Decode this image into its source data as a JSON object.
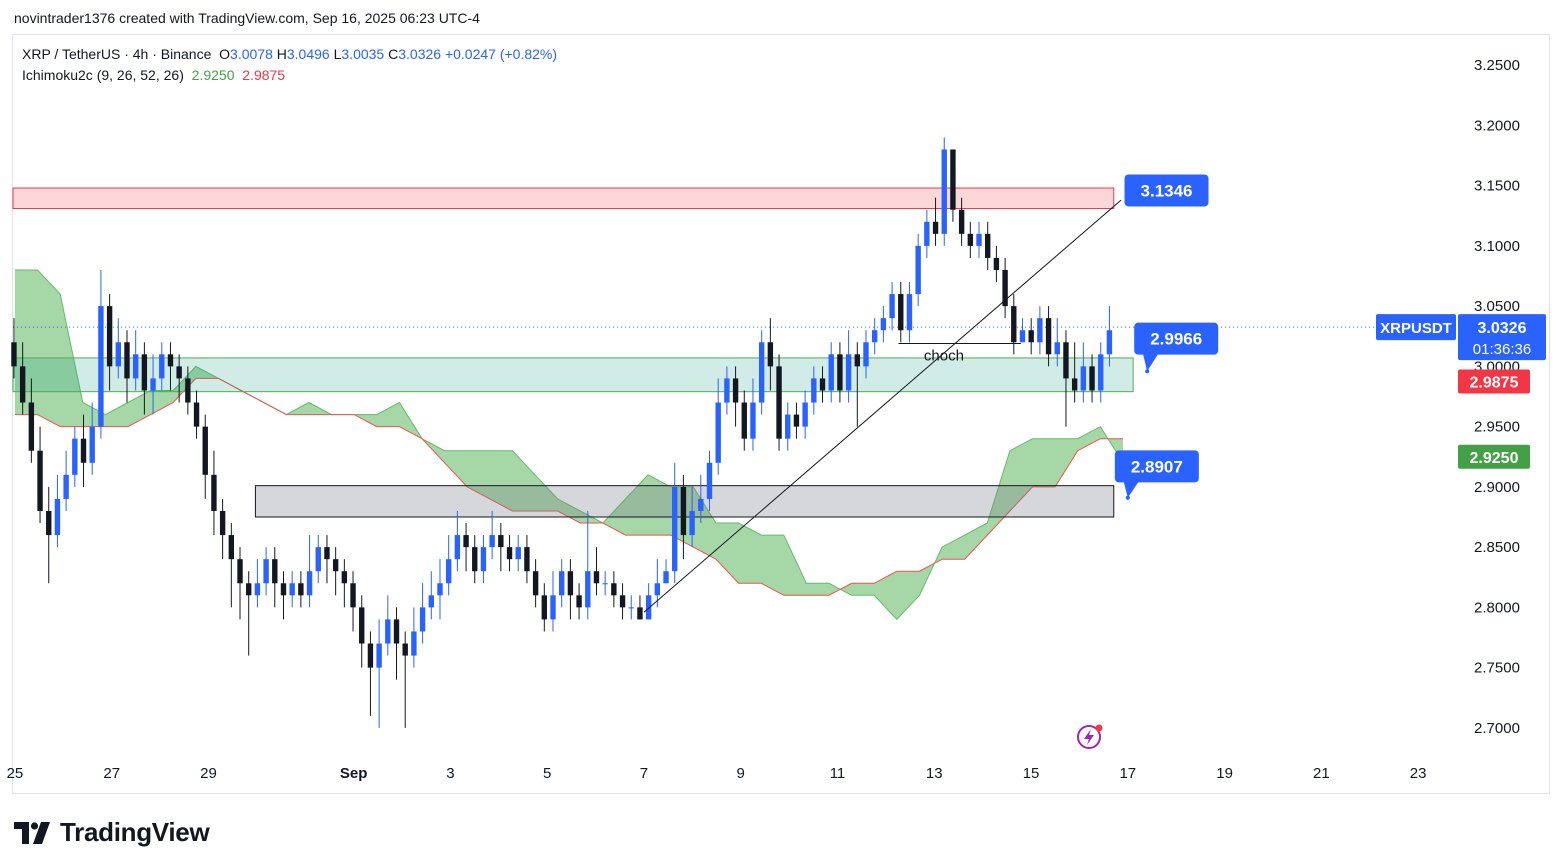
{
  "header": {
    "caption": "novintrader1376 created with TradingView.com, Sep 16, 2025 06:23 UTC-4"
  },
  "legend": {
    "symbol": "XRP / TetherUS · 4h · Binance",
    "open_label": "O",
    "open": "3.0078",
    "high_label": "H",
    "high": "3.0496",
    "low_label": "L",
    "low": "3.0035",
    "close_label": "C",
    "close": "3.0326",
    "change": "+0.0247 (+0.82%)",
    "indicator": "Ichimoku2c (9, 26, 52, 26)",
    "ind_val_1": "2.9250",
    "ind_val_2": "2.9875"
  },
  "brand": {
    "name": "TradingView"
  },
  "colors": {
    "up": "#2962ff",
    "down": "#131722",
    "cloud_green": "#4caf50",
    "cloud_edge_red": "#ef5350",
    "label_blue": "#2962ff",
    "label_red": "#f23645",
    "label_green": "#43a047"
  },
  "chart_data": {
    "type": "candlestick",
    "title": "XRP / TetherUS · 4h · Binance",
    "y_range": [
      2.675,
      3.275
    ],
    "y_ticks": [
      "3.2500",
      "3.2000",
      "3.1500",
      "3.1000",
      "3.0500",
      "3.0000",
      "2.9500",
      "2.9000",
      "2.8500",
      "2.8000",
      "2.7500",
      "2.7000"
    ],
    "x_range": [
      -0.04,
      29.7
    ],
    "x_ticks": [
      {
        "day": 0,
        "label": "25"
      },
      {
        "day": 2,
        "label": "27"
      },
      {
        "day": 4,
        "label": "29"
      },
      {
        "day": 7,
        "label": "Sep"
      },
      {
        "day": 9,
        "label": "3"
      },
      {
        "day": 11,
        "label": "5"
      },
      {
        "day": 13,
        "label": "7"
      },
      {
        "day": 15,
        "label": "9"
      },
      {
        "day": 17,
        "label": "11"
      },
      {
        "day": 19,
        "label": "13"
      },
      {
        "day": 21,
        "label": "15"
      },
      {
        "day": 23,
        "label": "17"
      },
      {
        "day": 25,
        "label": "19"
      },
      {
        "day": 27,
        "label": "21"
      },
      {
        "day": 29,
        "label": "23"
      }
    ],
    "candles": [
      [
        3.02,
        3.0,
        3.04,
        2.99
      ],
      [
        3.0,
        2.97,
        3.02,
        2.96
      ],
      [
        2.97,
        2.93,
        2.99,
        2.92
      ],
      [
        2.93,
        2.88,
        2.95,
        2.87
      ],
      [
        2.88,
        2.86,
        2.9,
        2.82
      ],
      [
        2.86,
        2.89,
        2.91,
        2.85
      ],
      [
        2.89,
        2.91,
        2.93,
        2.88
      ],
      [
        2.91,
        2.94,
        2.95,
        2.9
      ],
      [
        2.94,
        2.92,
        2.96,
        2.9
      ],
      [
        2.92,
        2.95,
        2.97,
        2.91
      ],
      [
        2.95,
        3.05,
        3.08,
        2.94
      ],
      [
        3.05,
        3.0,
        3.06,
        2.98
      ],
      [
        3.0,
        3.02,
        3.04,
        2.99
      ],
      [
        3.02,
        2.99,
        3.03,
        2.97
      ],
      [
        2.99,
        3.01,
        3.03,
        2.98
      ],
      [
        3.01,
        2.98,
        3.02,
        2.96
      ],
      [
        2.98,
        2.99,
        3.01,
        2.96
      ],
      [
        2.99,
        3.01,
        3.02,
        2.98
      ],
      [
        3.01,
        3.0,
        3.02,
        2.98
      ],
      [
        3.0,
        2.99,
        3.01,
        2.97
      ],
      [
        2.99,
        2.97,
        3.0,
        2.96
      ],
      [
        2.97,
        2.95,
        2.98,
        2.94
      ],
      [
        2.95,
        2.91,
        2.96,
        2.89
      ],
      [
        2.91,
        2.88,
        2.93,
        2.86
      ],
      [
        2.88,
        2.86,
        2.89,
        2.84
      ],
      [
        2.86,
        2.84,
        2.87,
        2.8
      ],
      [
        2.84,
        2.82,
        2.85,
        2.79
      ],
      [
        2.82,
        2.81,
        2.83,
        2.76
      ],
      [
        2.81,
        2.82,
        2.84,
        2.8
      ],
      [
        2.82,
        2.84,
        2.85,
        2.81
      ],
      [
        2.84,
        2.82,
        2.85,
        2.8
      ],
      [
        2.82,
        2.81,
        2.83,
        2.79
      ],
      [
        2.81,
        2.82,
        2.83,
        2.8
      ],
      [
        2.82,
        2.81,
        2.83,
        2.8
      ],
      [
        2.81,
        2.83,
        2.86,
        2.8
      ],
      [
        2.83,
        2.85,
        2.86,
        2.82
      ],
      [
        2.85,
        2.84,
        2.86,
        2.82
      ],
      [
        2.84,
        2.83,
        2.85,
        2.81
      ],
      [
        2.83,
        2.82,
        2.84,
        2.8
      ],
      [
        2.82,
        2.8,
        2.83,
        2.78
      ],
      [
        2.8,
        2.77,
        2.81,
        2.75
      ],
      [
        2.77,
        2.75,
        2.78,
        2.71
      ],
      [
        2.75,
        2.77,
        2.79,
        2.7
      ],
      [
        2.77,
        2.79,
        2.81,
        2.76
      ],
      [
        2.79,
        2.77,
        2.8,
        2.74
      ],
      [
        2.77,
        2.76,
        2.78,
        2.7
      ],
      [
        2.76,
        2.78,
        2.8,
        2.75
      ],
      [
        2.78,
        2.8,
        2.82,
        2.77
      ],
      [
        2.8,
        2.81,
        2.83,
        2.79
      ],
      [
        2.81,
        2.82,
        2.84,
        2.79
      ],
      [
        2.82,
        2.84,
        2.86,
        2.81
      ],
      [
        2.84,
        2.86,
        2.88,
        2.83
      ],
      [
        2.86,
        2.85,
        2.87,
        2.83
      ],
      [
        2.85,
        2.83,
        2.86,
        2.82
      ],
      [
        2.83,
        2.85,
        2.86,
        2.82
      ],
      [
        2.85,
        2.86,
        2.88,
        2.84
      ],
      [
        2.86,
        2.85,
        2.87,
        2.83
      ],
      [
        2.85,
        2.84,
        2.86,
        2.83
      ],
      [
        2.84,
        2.85,
        2.86,
        2.83
      ],
      [
        2.85,
        2.83,
        2.86,
        2.82
      ],
      [
        2.83,
        2.81,
        2.84,
        2.8
      ],
      [
        2.81,
        2.79,
        2.82,
        2.78
      ],
      [
        2.79,
        2.81,
        2.83,
        2.78
      ],
      [
        2.81,
        2.83,
        2.84,
        2.8
      ],
      [
        2.83,
        2.81,
        2.84,
        2.79
      ],
      [
        2.81,
        2.8,
        2.82,
        2.79
      ],
      [
        2.8,
        2.83,
        2.88,
        2.79
      ],
      [
        2.83,
        2.82,
        2.85,
        2.81
      ],
      [
        2.82,
        2.82,
        2.83,
        2.81
      ],
      [
        2.82,
        2.81,
        2.83,
        2.8
      ],
      [
        2.81,
        2.8,
        2.82,
        2.79
      ],
      [
        2.8,
        2.8,
        2.81,
        2.79
      ],
      [
        2.8,
        2.79,
        2.81,
        2.79
      ],
      [
        2.79,
        2.81,
        2.82,
        2.79
      ],
      [
        2.81,
        2.82,
        2.84,
        2.8
      ],
      [
        2.82,
        2.83,
        2.84,
        2.82
      ],
      [
        2.83,
        2.9,
        2.92,
        2.82
      ],
      [
        2.9,
        2.86,
        2.91,
        2.84
      ],
      [
        2.86,
        2.88,
        2.9,
        2.85
      ],
      [
        2.88,
        2.89,
        2.91,
        2.87
      ],
      [
        2.89,
        2.92,
        2.93,
        2.88
      ],
      [
        2.92,
        2.97,
        2.99,
        2.91
      ],
      [
        2.97,
        2.99,
        3.0,
        2.96
      ],
      [
        2.99,
        2.97,
        3.0,
        2.95
      ],
      [
        2.97,
        2.94,
        2.98,
        2.93
      ],
      [
        2.94,
        2.97,
        2.99,
        2.93
      ],
      [
        2.97,
        3.02,
        3.03,
        2.96
      ],
      [
        3.02,
        3.0,
        3.04,
        2.98
      ],
      [
        3.0,
        2.94,
        3.01,
        2.93
      ],
      [
        2.94,
        2.96,
        2.97,
        2.93
      ],
      [
        2.96,
        2.95,
        2.97,
        2.94
      ],
      [
        2.95,
        2.97,
        2.98,
        2.94
      ],
      [
        2.97,
        2.99,
        3.0,
        2.96
      ],
      [
        2.99,
        2.98,
        3.0,
        2.97
      ],
      [
        2.98,
        3.01,
        3.02,
        2.97
      ],
      [
        3.01,
        2.98,
        3.02,
        2.97
      ],
      [
        2.98,
        3.01,
        3.03,
        2.97
      ],
      [
        3.01,
        3.0,
        3.02,
        2.95
      ],
      [
        3.0,
        3.02,
        3.03,
        2.99
      ],
      [
        3.02,
        3.03,
        3.04,
        3.01
      ],
      [
        3.03,
        3.04,
        3.05,
        3.02
      ],
      [
        3.04,
        3.06,
        3.07,
        3.03
      ],
      [
        3.06,
        3.03,
        3.07,
        3.02
      ],
      [
        3.03,
        3.06,
        3.07,
        3.02
      ],
      [
        3.06,
        3.1,
        3.11,
        3.05
      ],
      [
        3.1,
        3.12,
        3.13,
        3.09
      ],
      [
        3.12,
        3.11,
        3.14,
        3.1
      ],
      [
        3.11,
        3.18,
        3.19,
        3.1
      ],
      [
        3.18,
        3.13,
        3.18,
        3.12
      ],
      [
        3.13,
        3.11,
        3.14,
        3.1
      ],
      [
        3.11,
        3.1,
        3.12,
        3.09
      ],
      [
        3.1,
        3.11,
        3.12,
        3.09
      ],
      [
        3.11,
        3.09,
        3.12,
        3.08
      ],
      [
        3.09,
        3.08,
        3.1,
        3.07
      ],
      [
        3.08,
        3.05,
        3.09,
        3.04
      ],
      [
        3.05,
        3.02,
        3.06,
        3.01
      ],
      [
        3.02,
        3.03,
        3.04,
        3.02
      ],
      [
        3.03,
        3.02,
        3.04,
        3.01
      ],
      [
        3.02,
        3.04,
        3.05,
        3.01
      ],
      [
        3.04,
        3.01,
        3.05,
        3.0
      ],
      [
        3.01,
        3.02,
        3.04,
        3.0
      ],
      [
        3.02,
        2.99,
        3.03,
        2.95
      ],
      [
        2.99,
        2.98,
        3.02,
        2.97
      ],
      [
        2.98,
        3.0,
        3.02,
        2.97
      ],
      [
        3.0,
        2.98,
        3.01,
        2.97
      ],
      [
        2.98,
        3.01,
        3.02,
        2.97
      ],
      [
        3.01,
        3.03,
        3.05,
        3.0
      ]
    ],
    "last_candle_color": "#2962ff",
    "ichimoku_span_a": [
      3.08,
      3.08,
      3.06,
      2.97,
      2.96,
      2.97,
      2.98,
      2.98,
      3.0,
      2.99,
      2.98,
      2.97,
      2.96,
      2.97,
      2.96,
      2.96,
      2.96,
      2.97,
      2.94,
      2.93,
      2.93,
      2.93,
      2.93,
      2.91,
      2.89,
      2.88,
      2.87,
      2.89,
      2.91,
      2.9,
      2.9,
      2.87,
      2.87,
      2.86,
      2.86,
      2.82,
      2.82,
      2.81,
      2.81,
      2.79,
      2.81,
      2.85,
      2.86,
      2.87,
      2.93,
      2.94,
      2.94,
      2.94,
      2.95,
      2.92
    ],
    "ichimoku_span_b": [
      2.96,
      2.96,
      2.95,
      2.95,
      2.95,
      2.95,
      2.96,
      2.97,
      2.99,
      2.99,
      2.98,
      2.97,
      2.96,
      2.96,
      2.96,
      2.96,
      2.95,
      2.95,
      2.94,
      2.92,
      2.9,
      2.89,
      2.88,
      2.88,
      2.88,
      2.87,
      2.87,
      2.86,
      2.86,
      2.86,
      2.85,
      2.84,
      2.82,
      2.82,
      2.81,
      2.81,
      2.81,
      2.82,
      2.82,
      2.83,
      2.83,
      2.84,
      2.84,
      2.86,
      2.88,
      2.9,
      2.9,
      2.93,
      2.94,
      2.94
    ],
    "cloud_start_day": 0,
    "cloud_end_day": 22.9,
    "zones": [
      {
        "name": "resistance",
        "top": 3.148,
        "bottom": 3.131,
        "start": -0.04,
        "end": 22.71
      },
      {
        "name": "demand",
        "top": 3.007,
        "bottom": 2.979,
        "start": -0.04,
        "end": 23.11
      },
      {
        "name": "support",
        "top": 2.901,
        "bottom": 2.875,
        "start": 4.97,
        "end": 22.71
      }
    ],
    "lines": {
      "trendline": {
        "from": [
          13.0,
          2.796
        ],
        "to": [
          22.86,
          3.138
        ]
      },
      "choch_line": {
        "from": [
          18.26,
          3.019
        ],
        "to": [
          20.79,
          3.019
        ]
      },
      "current_price": 3.0326
    },
    "annotations": [
      {
        "text": "choch",
        "day": 19.2,
        "price": 3.005
      },
      {
        "text": "3.1346",
        "day": 23.8,
        "price": 3.146,
        "arrow_to": [
          23.25,
          3.135
        ]
      },
      {
        "text": "2.9966",
        "day": 24.0,
        "price": 3.023,
        "arrow_to": [
          23.4,
          2.996
        ]
      },
      {
        "text": "2.8907",
        "day": 23.6,
        "price": 2.917,
        "arrow_to": [
          23.0,
          2.891
        ]
      }
    ],
    "price_labels": {
      "symbol_tag": "XRPUSDT",
      "current": "3.0326",
      "countdown": "01:36:36",
      "red": "2.9875",
      "red_price": 2.9875,
      "green": "2.9250",
      "green_price": 2.925
    }
  }
}
